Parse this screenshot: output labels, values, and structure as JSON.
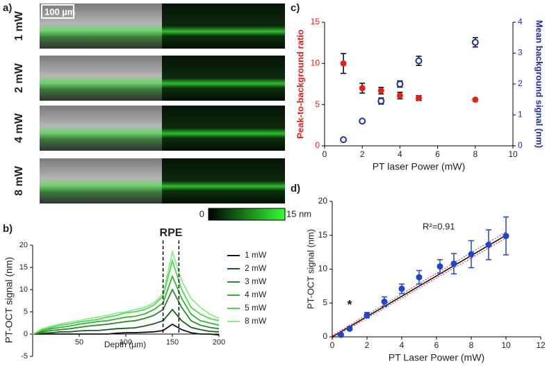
{
  "chart_data": [
    {
      "type": "image",
      "panel_label": "a)",
      "rows": [
        "1 mW",
        "2 mW",
        "4 mW",
        "8 mW"
      ],
      "scale_bar": "100 µm",
      "colorbar": {
        "lim": [
          0,
          15
        ],
        "ticks": [
          0,
          {
            "value": 15,
            "label": "15 nm"
          }
        ],
        "colors": [
          "#000000",
          "#33ff33"
        ]
      }
    },
    {
      "type": "line",
      "panel_label": "b)",
      "xlabel": "Depth (µm)",
      "ylabel": "PT-OCT signal (nm)",
      "annotation": {
        "text": "RPE",
        "x": [
          140,
          157
        ]
      },
      "x": [
        0,
        10,
        20,
        30,
        40,
        50,
        60,
        70,
        80,
        90,
        100,
        110,
        120,
        130,
        140,
        150,
        160,
        170,
        180,
        190,
        200
      ],
      "xlim": [
        0,
        200
      ],
      "xticks": [
        50,
        100,
        150,
        200
      ],
      "ylim": [
        -5,
        20
      ],
      "yticks": [
        -5,
        0,
        5,
        10,
        15,
        20
      ],
      "series": [
        {
          "name": "1 mW",
          "color": "#111111",
          "values": [
            0,
            0,
            0,
            0,
            0,
            0,
            0,
            0,
            0,
            0.2,
            0.3,
            0.3,
            0.4,
            0.5,
            0.8,
            2.2,
            1,
            0.3,
            0,
            0,
            -0.2
          ]
        },
        {
          "name": "2 mW",
          "color": "#1a5c1a",
          "values": [
            0,
            0.2,
            0.3,
            0.5,
            0.5,
            0.7,
            0.8,
            0.8,
            1,
            1.2,
            1.3,
            1.4,
            1.8,
            2.3,
            3,
            5.5,
            3,
            1.5,
            1,
            0.6,
            0.5
          ]
        },
        {
          "name": "3 mW",
          "color": "#2a8a2a",
          "values": [
            0,
            0.5,
            0.8,
            1,
            1.2,
            1.5,
            1.8,
            2,
            2.2,
            2.5,
            2.8,
            3,
            3.5,
            4.2,
            5.5,
            10,
            6,
            3,
            2,
            1.5,
            1.2
          ]
        },
        {
          "name": "4 mW",
          "color": "#33b533",
          "values": [
            0,
            0.8,
            1.2,
            1.5,
            1.8,
            2.2,
            2.5,
            2.8,
            3,
            3.4,
            3.8,
            4,
            4.5,
            5.5,
            7,
            13,
            8,
            4.5,
            3,
            2.5,
            2
          ]
        },
        {
          "name": "5 mW",
          "color": "#4cd94c",
          "values": [
            0,
            1,
            1.5,
            2,
            2.3,
            2.7,
            3,
            3.3,
            3.8,
            4.2,
            4.8,
            5,
            5.5,
            6.5,
            8.5,
            16.5,
            10,
            6,
            4.5,
            3.5,
            3
          ]
        },
        {
          "name": "8 mW",
          "color": "#8eea8e",
          "values": [
            0,
            1.2,
            1.8,
            2.3,
            2.7,
            3,
            3.5,
            3.8,
            4.2,
            4.7,
            5,
            5.5,
            6,
            7,
            9,
            18.5,
            12,
            8,
            6,
            4.5,
            3.5
          ]
        }
      ]
    },
    {
      "type": "scatter",
      "panel_label": "c)",
      "xlabel": "PT laser Power (mW)",
      "ylabel": "Peak-to-background ratio",
      "y2label": "Mean background signal (nm)",
      "x": [
        1,
        2,
        3,
        4,
        5,
        8
      ],
      "xlim": [
        0,
        10
      ],
      "xticks": [
        0,
        2,
        4,
        6,
        8,
        10
      ],
      "ylim": [
        0,
        15
      ],
      "yticks": [
        0,
        5,
        10,
        15
      ],
      "y2lim": [
        0,
        4
      ],
      "y2ticks": [
        0,
        1,
        2,
        3,
        4
      ],
      "series": [
        {
          "color": "#e8201c",
          "marker": "filled",
          "values": [
            10,
            7,
            6.7,
            6.1,
            5.8,
            5.6
          ],
          "errors": [
            1.2,
            0.6,
            0.4,
            0.4,
            0.3,
            0
          ]
        },
        {
          "color": "#1f2fa8",
          "marker": "open",
          "axis": "y2",
          "values": [
            0.2,
            0.8,
            1.45,
            2.0,
            2.75,
            3.35
          ],
          "errors": [
            0,
            0,
            0.1,
            0.1,
            0.15,
            0.15
          ]
        }
      ]
    },
    {
      "type": "scatter",
      "panel_label": "d)",
      "xlabel": "PT Laser Power (mW)",
      "ylabel": "PT-OCT signal (nm)",
      "annotations": [
        "R²=0.91",
        "*"
      ],
      "x": [
        0.5,
        1,
        2,
        3,
        4,
        5,
        6.2,
        7,
        8,
        9,
        10
      ],
      "xlim": [
        0,
        12
      ],
      "xticks": [
        0,
        2,
        4,
        6,
        8,
        10,
        12
      ],
      "ylim": [
        0,
        20
      ],
      "yticks": [
        0,
        5,
        10,
        15,
        20
      ],
      "series": [
        {
          "color": "#2244cc",
          "marker": "filled",
          "values": [
            0.3,
            1.2,
            3.2,
            5.2,
            7.1,
            8.8,
            10.4,
            10.8,
            12.2,
            13.6,
            14.9
          ],
          "errors": [
            0,
            0.2,
            0.4,
            0.7,
            0.7,
            1,
            1,
            1.5,
            2,
            2.2,
            2.8
          ]
        }
      ],
      "fit_lines": [
        {
          "color": "#000000",
          "x": [
            0,
            10
          ],
          "y": [
            0,
            15
          ]
        },
        {
          "color": "#cc2222",
          "dash": true,
          "x": [
            0,
            10
          ],
          "y": [
            0.2,
            15.5
          ]
        },
        {
          "color": "#cc2222",
          "dash": true,
          "x": [
            0,
            10
          ],
          "y": [
            -0.2,
            14.6
          ]
        }
      ]
    }
  ]
}
